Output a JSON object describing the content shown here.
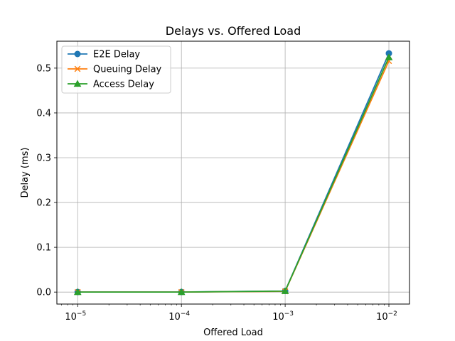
{
  "chart_data": {
    "type": "line",
    "title": "Delays vs. Offered Load",
    "xlabel": "Offered Load",
    "ylabel": "Delay (ms)",
    "x_scale": "log",
    "xlim": [
      6.3e-06,
      0.0158
    ],
    "ylim": [
      -0.0267,
      0.5601
    ],
    "x": [
      1e-05,
      0.0001,
      0.001,
      0.01
    ],
    "x_tick_values": [
      1e-05,
      0.0001,
      0.001,
      0.01
    ],
    "x_tick_labels": [
      {
        "base": "10",
        "exp": "−5"
      },
      {
        "base": "10",
        "exp": "−4"
      },
      {
        "base": "10",
        "exp": "−3"
      },
      {
        "base": "10",
        "exp": "−2"
      }
    ],
    "y_ticks": [
      0.0,
      0.1,
      0.2,
      0.3,
      0.4,
      0.5
    ],
    "y_tick_labels": [
      "0.0",
      "0.1",
      "0.2",
      "0.3",
      "0.4",
      "0.5"
    ],
    "grid": true,
    "legend_position": "top-left",
    "series": [
      {
        "name": "E2E Delay",
        "values": [
          0.0002,
          0.0002,
          0.0025,
          0.533
        ],
        "color": "#1f77b4",
        "marker": "circle"
      },
      {
        "name": "Queuing Delay",
        "values": [
          0.0,
          0.0,
          0.0018,
          0.516
        ],
        "color": "#ff7f0e",
        "marker": "x"
      },
      {
        "name": "Access Delay",
        "values": [
          0.0001,
          0.0001,
          0.0022,
          0.524
        ],
        "color": "#2ca02c",
        "marker": "triangle"
      }
    ]
  }
}
